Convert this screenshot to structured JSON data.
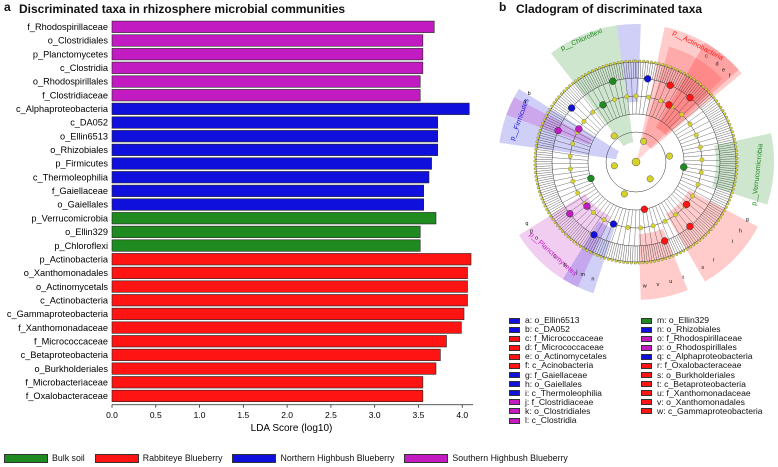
{
  "panel_a": {
    "letter": "a",
    "title": "Discriminated taxa in rhizosphere microbial communities"
  },
  "panel_b": {
    "letter": "b",
    "title": "Cladogram of discriminated taxa"
  },
  "colors": {
    "Bulk soil": "#1f8a1f",
    "Rabbiteye Blueberry": "#ff1414",
    "Northern Highbush Blueberry": "#1010dd",
    "Southern Highbush Blueberry": "#c21bc2"
  },
  "chart_data": {
    "type": "bar",
    "orientation": "horizontal",
    "title": "Discriminated taxa in rhizosphere microbial communities",
    "xlabel": "LDA Score (log10)",
    "ylabel": "",
    "xlim": [
      0,
      4.1
    ],
    "xticks": [
      "0.0",
      "0.5",
      "1.0",
      "1.5",
      "2.0",
      "2.5",
      "3.0",
      "3.5",
      "4.0"
    ],
    "grid": false,
    "legend_position": "bottom",
    "legend": [
      "Bulk soil",
      "Rabbiteye Blueberry",
      "Northern Highbush Blueberry",
      "Southern Highbush Blueberry"
    ],
    "bars": [
      {
        "label": "f_Rhodospirillaceae",
        "value": 3.68,
        "group": "Southern Highbush Blueberry"
      },
      {
        "label": "o_Clostridiales",
        "value": 3.55,
        "group": "Southern Highbush Blueberry"
      },
      {
        "label": "p_Planctomycetes",
        "value": 3.55,
        "group": "Southern Highbush Blueberry"
      },
      {
        "label": "c_Clostridia",
        "value": 3.55,
        "group": "Southern Highbush Blueberry"
      },
      {
        "label": "o_Rhodospirillales",
        "value": 3.52,
        "group": "Southern Highbush Blueberry"
      },
      {
        "label": "f_Clostridiaceae",
        "value": 3.52,
        "group": "Southern Highbush Blueberry"
      },
      {
        "label": "c_Alphaproteobacteria",
        "value": 4.08,
        "group": "Northern Highbush Blueberry"
      },
      {
        "label": "c_DA052",
        "value": 3.72,
        "group": "Northern Highbush Blueberry"
      },
      {
        "label": "o_Ellin6513",
        "value": 3.72,
        "group": "Northern Highbush Blueberry"
      },
      {
        "label": "o_Rhizobiales",
        "value": 3.72,
        "group": "Northern Highbush Blueberry"
      },
      {
        "label": "p_Firmicutes",
        "value": 3.65,
        "group": "Northern Highbush Blueberry"
      },
      {
        "label": "c_Thermoleophilia",
        "value": 3.62,
        "group": "Northern Highbush Blueberry"
      },
      {
        "label": "f_Gaiellaceae",
        "value": 3.56,
        "group": "Northern Highbush Blueberry"
      },
      {
        "label": "o_Gaiellales",
        "value": 3.56,
        "group": "Northern Highbush Blueberry"
      },
      {
        "label": "p_Verrucomicrobia",
        "value": 3.7,
        "group": "Bulk soil"
      },
      {
        "label": "o_Ellin329",
        "value": 3.52,
        "group": "Bulk soil"
      },
      {
        "label": "p_Chloroflexi",
        "value": 3.52,
        "group": "Bulk soil"
      },
      {
        "label": "p_Actinobacteria",
        "value": 4.1,
        "group": "Rabbiteye Blueberry"
      },
      {
        "label": "o_Xanthomonadales",
        "value": 4.06,
        "group": "Rabbiteye Blueberry"
      },
      {
        "label": "o_Actinomycetals",
        "value": 4.06,
        "group": "Rabbiteye Blueberry"
      },
      {
        "label": "c_Actinobacteria",
        "value": 4.06,
        "group": "Rabbiteye Blueberry"
      },
      {
        "label": "c_Gammaproteobacteria",
        "value": 4.02,
        "group": "Rabbiteye Blueberry"
      },
      {
        "label": "f_Xanthomonadaceae",
        "value": 3.99,
        "group": "Rabbiteye Blueberry"
      },
      {
        "label": "f_Micrococcaceae",
        "value": 3.82,
        "group": "Rabbiteye Blueberry"
      },
      {
        "label": "c_Betaproteobacteria",
        "value": 3.75,
        "group": "Rabbiteye Blueberry"
      },
      {
        "label": "o_Burkholderiales",
        "value": 3.7,
        "group": "Rabbiteye Blueberry"
      },
      {
        "label": "f_Microbacteriaceae",
        "value": 3.55,
        "group": "Rabbiteye Blueberry"
      },
      {
        "label": "f_Oxalobacteraceae",
        "value": 3.55,
        "group": "Rabbiteye Blueberry"
      }
    ]
  },
  "cladogram": {
    "phylum_labels": [
      {
        "label": "p__Chloroflexi",
        "group": "Bulk soil"
      },
      {
        "label": "p__Actinobacteria",
        "group": "Rabbiteye Blueberry"
      },
      {
        "label": "p__Firmicutes",
        "group": "Northern Highbush Blueberry"
      },
      {
        "label": "p__Verrucomicrobia",
        "group": "Bulk soil"
      },
      {
        "label": "p__Planctomycetes",
        "group": "Southern Highbush Blueberry"
      }
    ],
    "taxa_legend": [
      {
        "key": "a: o_Ellin6513",
        "group": "Northern Highbush Blueberry"
      },
      {
        "key": "b: c_DA052",
        "group": "Northern Highbush Blueberry"
      },
      {
        "key": "c: f_Micrococcaceae",
        "group": "Rabbiteye Blueberry"
      },
      {
        "key": "d: f_Micrococcaceae",
        "group": "Rabbiteye Blueberry"
      },
      {
        "key": "e: o_Actinomycetales",
        "group": "Rabbiteye Blueberry"
      },
      {
        "key": "f: c_Acinobacteria",
        "group": "Rabbiteye Blueberry"
      },
      {
        "key": "g: f_Gaiellaceae",
        "group": "Northern Highbush Blueberry"
      },
      {
        "key": "h: o_Gaiellales",
        "group": "Northern Highbush Blueberry"
      },
      {
        "key": "i: c_Thermoleophilia",
        "group": "Northern Highbush Blueberry"
      },
      {
        "key": "j: f_Clostridiaceae",
        "group": "Southern Highbush Blueberry"
      },
      {
        "key": "k: o_Clostridiales",
        "group": "Southern Highbush Blueberry"
      },
      {
        "key": "l: c_Clostridia",
        "group": "Southern Highbush Blueberry"
      },
      {
        "key": "m: o_Ellin329",
        "group": "Bulk soil"
      },
      {
        "key": "n: o_Rhizobiales",
        "group": "Northern Highbush Blueberry"
      },
      {
        "key": "o: f_Rhodospirillaceae",
        "group": "Southern Highbush Blueberry"
      },
      {
        "key": "p: o_Rhodospirillales",
        "group": "Southern Highbush Blueberry"
      },
      {
        "key": "q: c_Alphaproteobacteria",
        "group": "Northern Highbush Blueberry"
      },
      {
        "key": "r: f_Oxalobacteraceae",
        "group": "Rabbiteye Blueberry"
      },
      {
        "key": "s: o_Burkholderiales",
        "group": "Rabbiteye Blueberry"
      },
      {
        "key": "t: c_Betaproteobacteria",
        "group": "Rabbiteye Blueberry"
      },
      {
        "key": "u: f_Xanthomonadaceae",
        "group": "Rabbiteye Blueberry"
      },
      {
        "key": "v: o_Xanthomonadales",
        "group": "Rabbiteye Blueberry"
      },
      {
        "key": "w: c_Gammaproteobacteria",
        "group": "Rabbiteye Blueberry"
      }
    ],
    "sector_letters": [
      "a",
      "b",
      "c",
      "d",
      "e",
      "f",
      "g",
      "h",
      "i",
      "j",
      "k",
      "l",
      "m",
      "n",
      "o",
      "p",
      "q",
      "r",
      "s",
      "t",
      "u",
      "v",
      "w"
    ]
  }
}
